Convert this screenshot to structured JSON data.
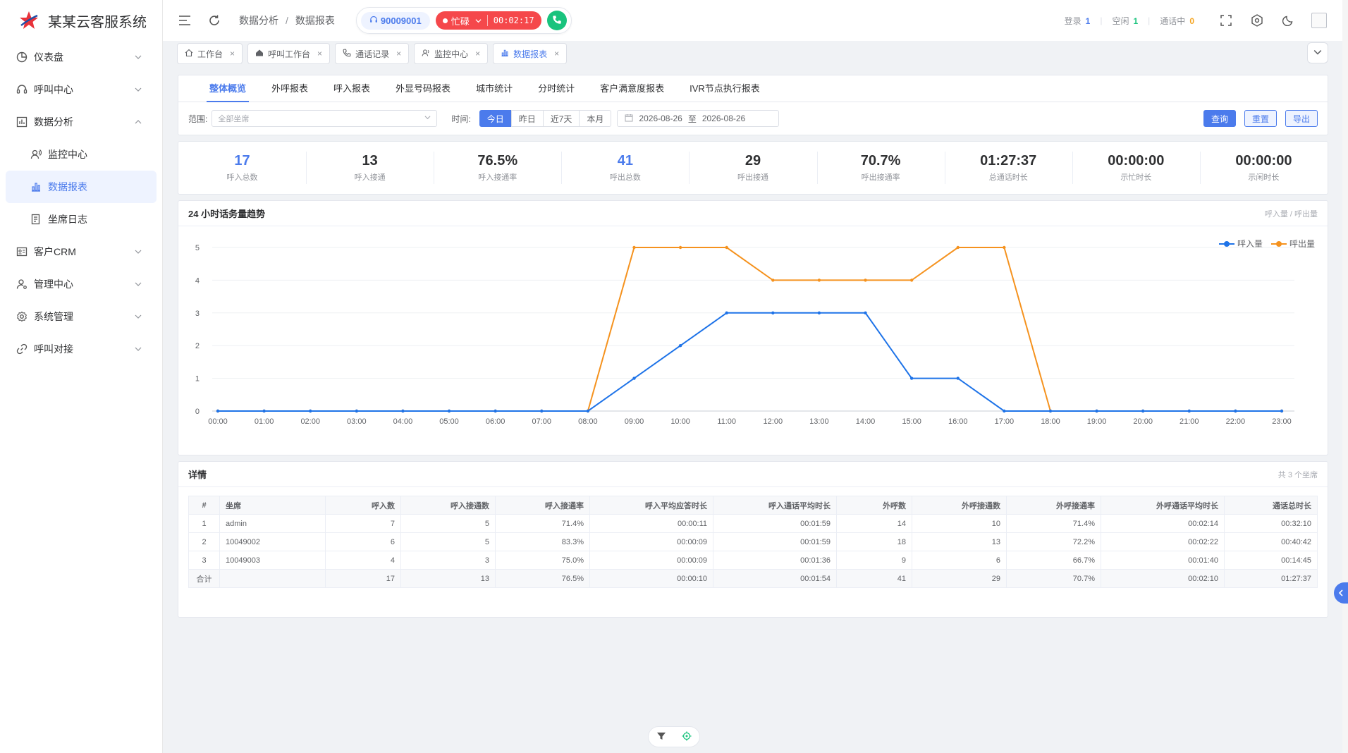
{
  "app": {
    "title": "某某云客服系统"
  },
  "sidebar": {
    "items": [
      {
        "label": "仪表盘"
      },
      {
        "label": "呼叫中心"
      },
      {
        "label": "数据分析"
      },
      {
        "label": "客户CRM"
      },
      {
        "label": "管理中心"
      },
      {
        "label": "系统管理"
      },
      {
        "label": "呼叫对接"
      }
    ],
    "sub": [
      {
        "label": "监控中心"
      },
      {
        "label": "数据报表"
      },
      {
        "label": "坐席日志"
      }
    ]
  },
  "header": {
    "breadcrumb": [
      "数据分析",
      "数据报表"
    ],
    "agent_id": "90009001",
    "status": "忙碌",
    "timer": "00:02:17",
    "stats": [
      {
        "label": "登录",
        "value": "1",
        "color": "#4b7bec"
      },
      {
        "label": "空闲",
        "value": "1",
        "color": "#19c37d"
      },
      {
        "label": "通话中",
        "value": "0",
        "color": "#f5a623"
      }
    ]
  },
  "tags": [
    {
      "label": "工作台"
    },
    {
      "label": "呼叫工作台"
    },
    {
      "label": "通话记录"
    },
    {
      "label": "监控中心"
    },
    {
      "label": "数据报表"
    }
  ],
  "tabs": [
    "整体概览",
    "外呼报表",
    "呼入报表",
    "外显号码报表",
    "城市统计",
    "分时统计",
    "客户满意度报表",
    "IVR节点执行报表"
  ],
  "filters": {
    "scope_label": "范围:",
    "scope_placeholder": "全部坐席",
    "time_label": "时间:",
    "ranges": [
      "今日",
      "昨日",
      "近7天",
      "本月"
    ],
    "date_from": "2026-08-26",
    "date_to_sep": "至",
    "date_to": "2026-08-26",
    "query": "查询",
    "reset": "重置",
    "export": "导出"
  },
  "stats": [
    {
      "value": "17",
      "label": "呼入总数"
    },
    {
      "value": "13",
      "label": "呼入接通"
    },
    {
      "value": "76.5%",
      "label": "呼入接通率"
    },
    {
      "value": "41",
      "label": "呼出总数"
    },
    {
      "value": "29",
      "label": "呼出接通"
    },
    {
      "value": "70.7%",
      "label": "呼出接通率"
    },
    {
      "value": "01:27:37",
      "label": "总通话时长"
    },
    {
      "value": "00:00:00",
      "label": "示忙时长"
    },
    {
      "value": "00:00:00",
      "label": "示闲时长"
    }
  ],
  "chart_section": {
    "title": "24 小时话务量趋势",
    "subtitle": "呼入量 / 呼出量"
  },
  "chart_data": {
    "type": "line",
    "title": "",
    "xlabel": "",
    "ylabel": "",
    "categories": [
      "00:00",
      "01:00",
      "02:00",
      "03:00",
      "04:00",
      "05:00",
      "06:00",
      "07:00",
      "08:00",
      "09:00",
      "10:00",
      "11:00",
      "12:00",
      "13:00",
      "14:00",
      "15:00",
      "16:00",
      "17:00",
      "18:00",
      "19:00",
      "20:00",
      "21:00",
      "22:00",
      "23:00"
    ],
    "ylim": [
      0,
      5
    ],
    "yticks": [
      0,
      1,
      2,
      3,
      4,
      5
    ],
    "grid": true,
    "legend_position": "top-right",
    "series": [
      {
        "name": "呼入量",
        "color": "#1e73e8",
        "values": [
          0,
          0,
          0,
          0,
          0,
          0,
          0,
          0,
          0,
          1,
          2,
          3,
          3,
          3,
          3,
          1,
          1,
          0,
          0,
          0,
          0,
          0,
          0,
          0
        ]
      },
      {
        "name": "呼出量",
        "color": "#f5921e",
        "values": [
          0,
          0,
          0,
          0,
          0,
          0,
          0,
          0,
          0,
          5,
          5,
          5,
          4,
          4,
          4,
          4,
          5,
          5,
          0,
          0,
          0,
          0,
          0,
          0
        ]
      }
    ]
  },
  "detail": {
    "title": "详情",
    "count_text": "共 3 个坐席",
    "columns": [
      "#",
      "坐席",
      "呼入数",
      "呼入接通数",
      "呼入接通率",
      "呼入平均应答时长",
      "呼入通话平均时长",
      "外呼数",
      "外呼接通数",
      "外呼接通率",
      "外呼通话平均时长",
      "通话总时长"
    ],
    "rows": [
      [
        "1",
        "admin",
        "7",
        "5",
        "71.4%",
        "00:00:11",
        "00:01:59",
        "14",
        "10",
        "71.4%",
        "00:02:14",
        "00:32:10"
      ],
      [
        "2",
        "10049002",
        "6",
        "5",
        "83.3%",
        "00:00:09",
        "00:01:59",
        "18",
        "13",
        "72.2%",
        "00:02:22",
        "00:40:42"
      ],
      [
        "3",
        "10049003",
        "4",
        "3",
        "75.0%",
        "00:00:09",
        "00:01:36",
        "9",
        "6",
        "66.7%",
        "00:01:40",
        "00:14:45"
      ]
    ],
    "total": [
      "合计",
      "",
      "17",
      "13",
      "76.5%",
      "00:00:10",
      "00:01:54",
      "41",
      "29",
      "70.7%",
      "00:02:10",
      "01:27:37"
    ]
  }
}
